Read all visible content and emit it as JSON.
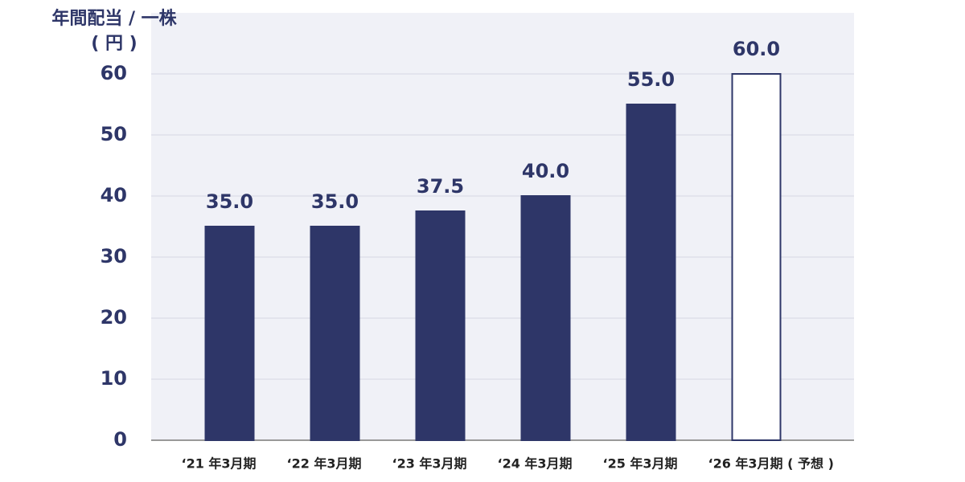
{
  "chart_data": {
    "type": "bar",
    "ylabel": [
      "年間配当 / 一株",
      "( 円 )"
    ],
    "categories": [
      "‘21 年3月期",
      "‘22 年3月期",
      "‘23 年3月期",
      "‘24 年3月期",
      "‘25 年3月期",
      "‘26 年3月期 ( 予想 )"
    ],
    "values": [
      35,
      35,
      37.5,
      40,
      55,
      60
    ],
    "value_labels": [
      "35.0",
      "35.0",
      "37.5",
      "40.0",
      "55.0",
      "60.0"
    ],
    "colors": [
      "#2e3668",
      "#2e3668",
      "#2e3668",
      "#2e3668",
      "#2e3668",
      "#ffffff"
    ],
    "edgecolor": "#2e3668",
    "ylim": [
      0,
      70
    ],
    "yticks": [
      0,
      10,
      20,
      30,
      40,
      50,
      60
    ],
    "grid": true
  }
}
